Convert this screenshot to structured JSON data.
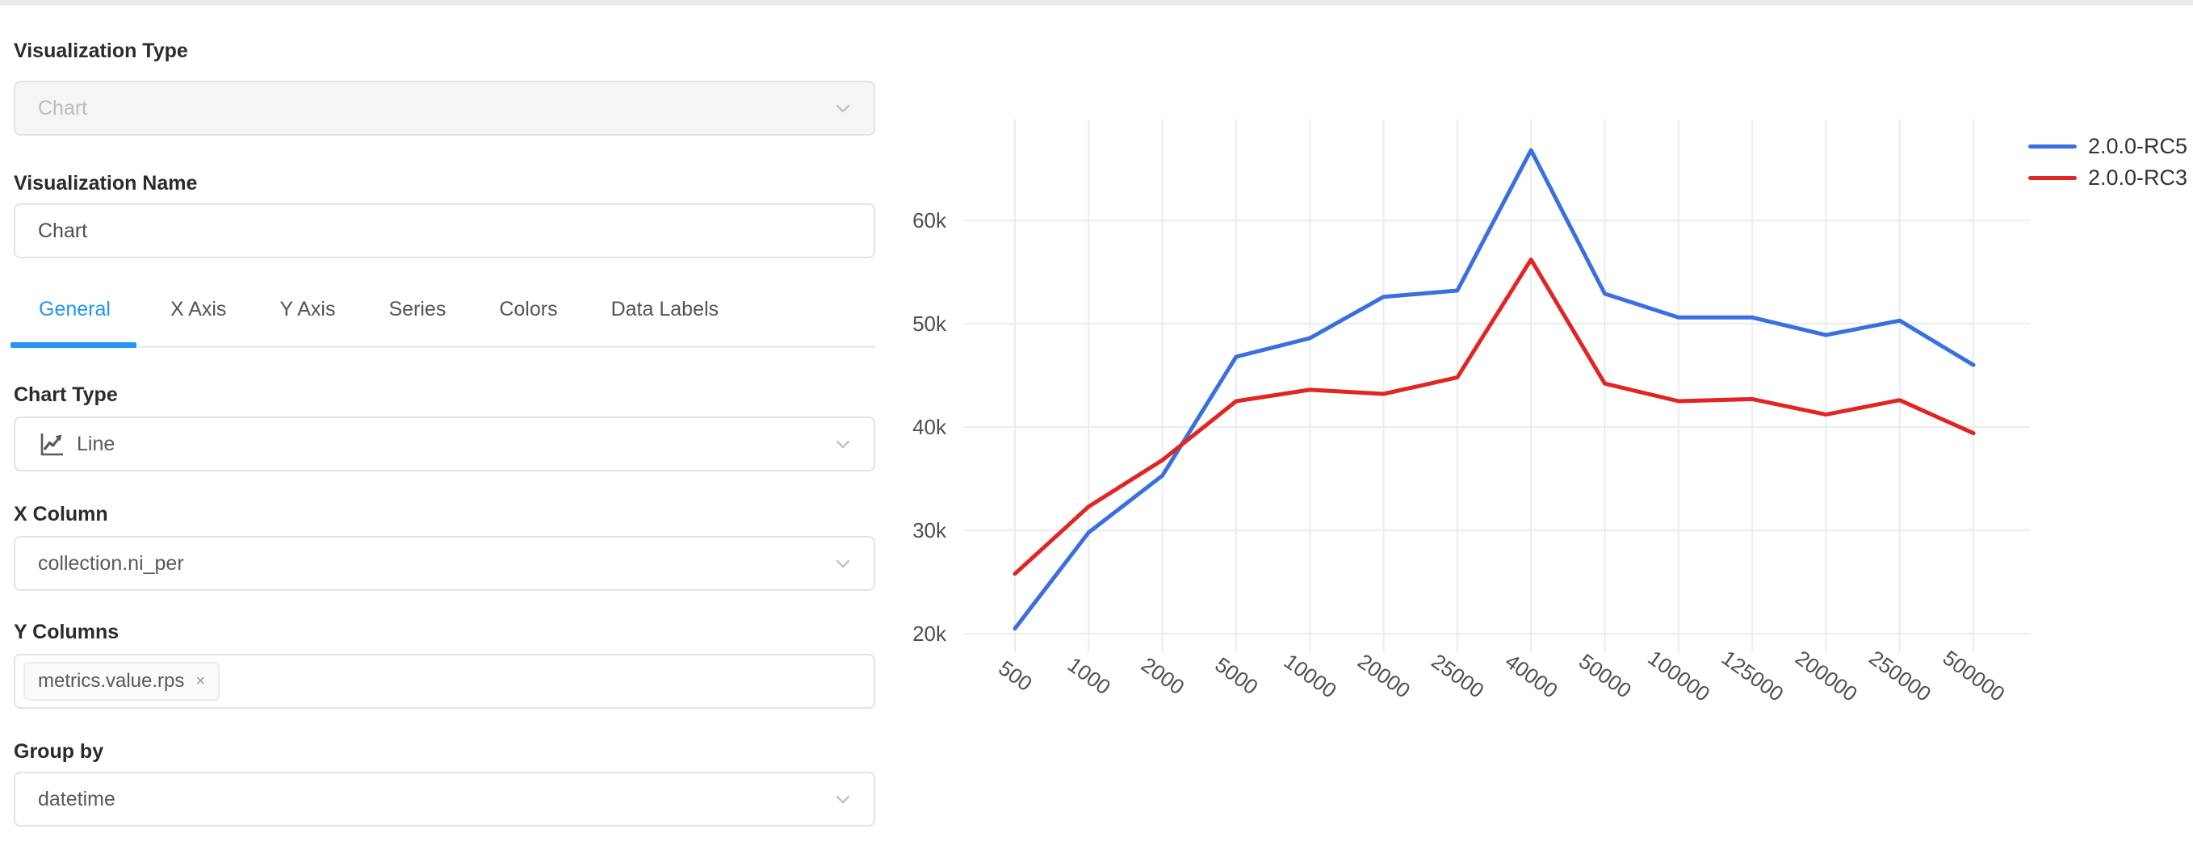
{
  "panel": {
    "viz_type": {
      "label": "Visualization Type",
      "value": "Chart",
      "state": "disabled"
    },
    "viz_name": {
      "label": "Visualization Name",
      "value": "Chart"
    },
    "tabs": {
      "items": [
        {
          "label": "General",
          "active": true
        },
        {
          "label": "X Axis",
          "active": false
        },
        {
          "label": "Y Axis",
          "active": false
        },
        {
          "label": "Series",
          "active": false
        },
        {
          "label": "Colors",
          "active": false
        },
        {
          "label": "Data Labels",
          "active": false
        }
      ],
      "active_color": "#2196f3"
    },
    "chart_type": {
      "label": "Chart Type",
      "value": "Line",
      "icon": "line-chart-icon"
    },
    "x_column": {
      "label": "X Column",
      "value": "collection.ni_per"
    },
    "y_columns": {
      "label": "Y Columns",
      "tags": [
        {
          "text": "metrics.value.rps",
          "remove_icon": "×"
        }
      ]
    },
    "group_by": {
      "label": "Group by",
      "value": "datetime"
    }
  },
  "chart_data": {
    "type": "line",
    "categories": [
      "500",
      "1000",
      "2000",
      "5000",
      "10000",
      "20000",
      "25000",
      "40000",
      "50000",
      "100000",
      "125000",
      "200000",
      "250000",
      "500000"
    ],
    "series": [
      {
        "name": "2.0.0-RC5",
        "color": "#3a6fe0",
        "values": [
          20500,
          29800,
          35300,
          46800,
          48600,
          52600,
          53200,
          66800,
          52900,
          50600,
          50600,
          48900,
          50300,
          46000
        ]
      },
      {
        "name": "2.0.0-RC3",
        "color": "#e02522",
        "values": [
          25800,
          32300,
          36800,
          42500,
          43600,
          43200,
          44800,
          56200,
          44200,
          42500,
          42700,
          41200,
          42600,
          39400
        ]
      }
    ],
    "yticks": [
      60000,
      50000,
      40000,
      30000,
      20000
    ],
    "ytick_labels": [
      "60k",
      "50k",
      "40k",
      "30k",
      "20k"
    ],
    "ylim": [
      20000,
      69500
    ],
    "xlabel": "",
    "ylabel": "",
    "grid": true,
    "grid_color": "#ececec",
    "axis_text_color": "#4f4f4f",
    "legend_position": "top-right",
    "x_label_rotation_deg": 36
  }
}
